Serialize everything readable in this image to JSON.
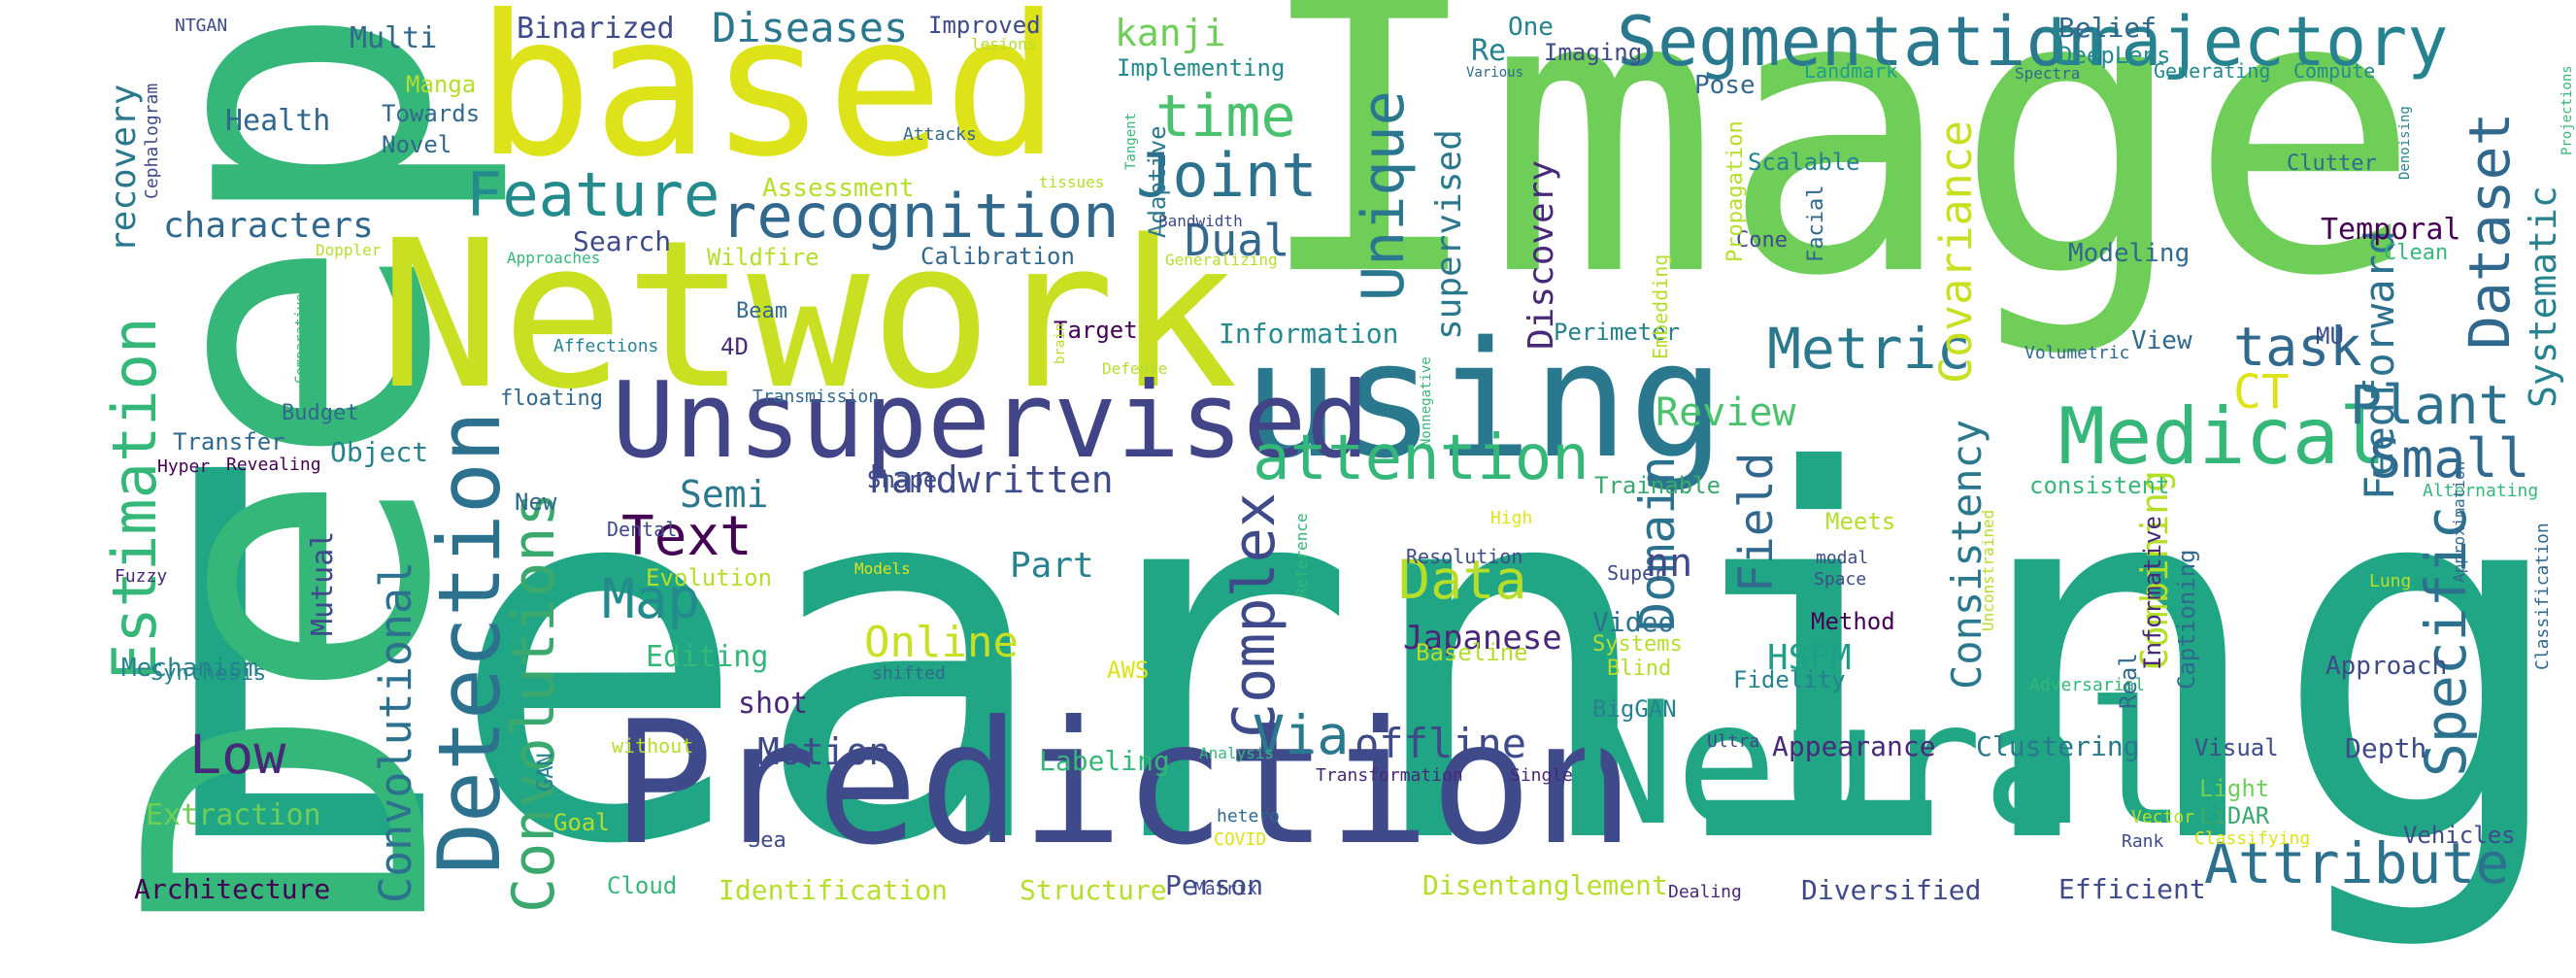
{
  "word_cloud": {
    "background": "#ffffff",
    "palette": [
      "#440154",
      "#482878",
      "#3e4a89",
      "#31688e",
      "#26828e",
      "#1f9e89",
      "#35b779",
      "#6ece58",
      "#b5de2b",
      "#dde318"
    ],
    "words": [
      {
        "text": "Learning",
        "color": "#21a685",
        "vertical": false
      },
      {
        "text": "Image",
        "color": "#6ece58",
        "vertical": false
      },
      {
        "text": "Deep",
        "color": "#35b779",
        "vertical": true
      },
      {
        "text": "Network",
        "color": "#c8df22",
        "vertical": false
      },
      {
        "text": "based",
        "color": "#dde318",
        "vertical": false
      },
      {
        "text": "Prediction",
        "color": "#3e4a89",
        "vertical": false
      },
      {
        "text": "Neural",
        "color": "#21a685",
        "vertical": false
      },
      {
        "text": "using",
        "color": "#2a788e",
        "vertical": false
      },
      {
        "text": "Unsupervised",
        "color": "#414487",
        "vertical": false
      },
      {
        "text": "Detection",
        "color": "#2c728e",
        "vertical": true
      },
      {
        "text": "Medical",
        "color": "#35b779",
        "vertical": false
      },
      {
        "text": "Segmentation",
        "color": "#2a788e",
        "vertical": false
      },
      {
        "text": "trajectory",
        "color": "#26828e",
        "vertical": false
      },
      {
        "text": "Estimation",
        "color": "#35b779",
        "vertical": true
      },
      {
        "text": "Convolutions",
        "color": "#3ba96e",
        "vertical": true
      },
      {
        "text": "Convolutional",
        "color": "#2c728e",
        "vertical": true
      },
      {
        "text": "attention",
        "color": "#35b779",
        "vertical": false
      },
      {
        "text": "recognition",
        "color": "#31688e",
        "vertical": false
      },
      {
        "text": "Feature",
        "color": "#238a8d",
        "vertical": false
      },
      {
        "text": "Joint",
        "color": "#2c728e",
        "vertical": false
      },
      {
        "text": "time",
        "color": "#4ac16d",
        "vertical": false
      },
      {
        "text": "Unique",
        "color": "#2a788e",
        "vertical": true
      },
      {
        "text": "Complex",
        "color": "#3e4a89",
        "vertical": true
      },
      {
        "text": "Metric",
        "color": "#2a788e",
        "vertical": false
      },
      {
        "text": "Plant",
        "color": "#2c728e",
        "vertical": false
      },
      {
        "text": "task",
        "color": "#31688e",
        "vertical": false
      },
      {
        "text": "Small",
        "color": "#31688e",
        "vertical": false
      },
      {
        "text": "Dataset",
        "color": "#31688e",
        "vertical": true
      },
      {
        "text": "Specific",
        "color": "#2c728e",
        "vertical": true
      },
      {
        "text": "Attribute",
        "color": "#2c728e",
        "vertical": false
      },
      {
        "text": "Text",
        "color": "#440154",
        "vertical": false
      },
      {
        "text": "Map",
        "color": "#238a8d",
        "vertical": false
      },
      {
        "text": "Low",
        "color": "#482878",
        "vertical": false
      },
      {
        "text": "Data",
        "color": "#b5de2b",
        "vertical": false
      },
      {
        "text": "Via",
        "color": "#2a788e",
        "vertical": false
      },
      {
        "text": "Domain",
        "color": "#2c728e",
        "vertical": true
      },
      {
        "text": "Field",
        "color": "#31688e",
        "vertical": true
      },
      {
        "text": "Consistency",
        "color": "#2a788e",
        "vertical": true
      },
      {
        "text": "Covariance",
        "color": "#c8df22",
        "vertical": true
      },
      {
        "text": "Feedforward",
        "color": "#2c728e",
        "vertical": true
      },
      {
        "text": "CT",
        "color": "#dde318",
        "vertical": false
      },
      {
        "text": "Online",
        "color": "#c8df22",
        "vertical": false
      },
      {
        "text": "Dual",
        "color": "#31688e",
        "vertical": false
      },
      {
        "text": "handwritten",
        "color": "#3e4a89",
        "vertical": false
      },
      {
        "text": "Motion",
        "color": "#3e4a89",
        "vertical": false
      },
      {
        "text": "offline",
        "color": "#3e4a89",
        "vertical": false
      },
      {
        "text": "Japanese",
        "color": "#482878",
        "vertical": false
      },
      {
        "text": "Review",
        "color": "#4ac16d",
        "vertical": false
      },
      {
        "text": "Semi",
        "color": "#2a788e",
        "vertical": false
      },
      {
        "text": "Part",
        "color": "#26828e",
        "vertical": false
      },
      {
        "text": "HSFM",
        "color": "#1f9e89",
        "vertical": false
      },
      {
        "text": "nn",
        "color": "#3e4a89",
        "vertical": false
      },
      {
        "text": "Systematic",
        "color": "#26828e",
        "vertical": true
      },
      {
        "text": "supervised",
        "color": "#2a788e",
        "vertical": true
      },
      {
        "text": "Discovery",
        "color": "#482878",
        "vertical": true
      },
      {
        "text": "Combining",
        "color": "#b5de2b",
        "vertical": true
      },
      {
        "text": "Diseases",
        "color": "#2a788e",
        "vertical": false
      },
      {
        "text": "kanji",
        "color": "#6ece58",
        "vertical": false
      },
      {
        "text": "characters",
        "color": "#31688e",
        "vertical": false
      },
      {
        "text": "recovery",
        "color": "#2a788e",
        "vertical": true
      },
      {
        "text": "Binarized",
        "color": "#3e4a89",
        "vertical": false
      },
      {
        "text": "Multi",
        "color": "#31688e",
        "vertical": false
      },
      {
        "text": "Health",
        "color": "#31688e",
        "vertical": false
      },
      {
        "text": "Towards",
        "color": "#31688e",
        "vertical": false
      },
      {
        "text": "Novel",
        "color": "#31688e",
        "vertical": false
      },
      {
        "text": "Manga",
        "color": "#b5de2b",
        "vertical": false
      },
      {
        "text": "Improved",
        "color": "#3e4a89",
        "vertical": false
      },
      {
        "text": "One",
        "color": "#26828e",
        "vertical": false
      },
      {
        "text": "Imaging",
        "color": "#3e4a89",
        "vertical": false
      },
      {
        "text": "Re",
        "color": "#26828e",
        "vertical": false
      },
      {
        "text": "Belief",
        "color": "#31688e",
        "vertical": false
      },
      {
        "text": "DeepLens",
        "color": "#238a8d",
        "vertical": false
      },
      {
        "text": "Implementing",
        "color": "#238a8d",
        "vertical": false
      },
      {
        "text": "Pose",
        "color": "#31688e",
        "vertical": false
      },
      {
        "text": "Landmark",
        "color": "#1f9e89",
        "vertical": false
      },
      {
        "text": "Generating",
        "color": "#238a8d",
        "vertical": false
      },
      {
        "text": "Compute",
        "color": "#238a8d",
        "vertical": false
      },
      {
        "text": "Scalable",
        "color": "#26828e",
        "vertical": false
      },
      {
        "text": "Clutter",
        "color": "#31688e",
        "vertical": false
      },
      {
        "text": "Temporal",
        "color": "#440154",
        "vertical": false
      },
      {
        "text": "Cone",
        "color": "#3e4a89",
        "vertical": false
      },
      {
        "text": "Modeling",
        "color": "#31688e",
        "vertical": false
      },
      {
        "text": "Clean",
        "color": "#35b779",
        "vertical": false
      },
      {
        "text": "Search",
        "color": "#3e4a89",
        "vertical": false
      },
      {
        "text": "Assessment",
        "color": "#b5de2b",
        "vertical": false
      },
      {
        "text": "Wildfire",
        "color": "#b5de2b",
        "vertical": false
      },
      {
        "text": "Calibration",
        "color": "#31688e",
        "vertical": false
      },
      {
        "text": "Adaptive",
        "color": "#2a788e",
        "vertical": true
      },
      {
        "text": "Information",
        "color": "#238a8d",
        "vertical": false
      },
      {
        "text": "Perimeter",
        "color": "#26828e",
        "vertical": false
      },
      {
        "text": "Target",
        "color": "#440154",
        "vertical": false
      },
      {
        "text": "Beam",
        "color": "#31688e",
        "vertical": false
      },
      {
        "text": "4D",
        "color": "#482878",
        "vertical": false
      },
      {
        "text": "View",
        "color": "#31688e",
        "vertical": false
      },
      {
        "text": "MU",
        "color": "#3e4a89",
        "vertical": false
      },
      {
        "text": "Volumetric",
        "color": "#31688e",
        "vertical": false
      },
      {
        "text": "Embedding",
        "color": "#b5de2b",
        "vertical": true
      },
      {
        "text": "Propagation",
        "color": "#b5de2b",
        "vertical": true
      },
      {
        "text": "Facial",
        "color": "#31688e",
        "vertical": true
      },
      {
        "text": "Transfer",
        "color": "#31688e",
        "vertical": false
      },
      {
        "text": "Object",
        "color": "#26828e",
        "vertical": false
      },
      {
        "text": "New",
        "color": "#31688e",
        "vertical": false
      },
      {
        "text": "Budget",
        "color": "#31688e",
        "vertical": false
      },
      {
        "text": "floating",
        "color": "#31688e",
        "vertical": false
      },
      {
        "text": "Transmission",
        "color": "#31688e",
        "vertical": false
      },
      {
        "text": "Hyper",
        "color": "#440154",
        "vertical": false
      },
      {
        "text": "Revealing",
        "color": "#440154",
        "vertical": false
      },
      {
        "text": "Shape",
        "color": "#3e4a89",
        "vertical": false
      },
      {
        "text": "Dental",
        "color": "#3e4a89",
        "vertical": false
      },
      {
        "text": "Mutual",
        "color": "#3e4a89",
        "vertical": true
      },
      {
        "text": "Trainable",
        "color": "#3ba96e",
        "vertical": false
      },
      {
        "text": "Meets",
        "color": "#b5de2b",
        "vertical": false
      },
      {
        "text": "consistent",
        "color": "#35b779",
        "vertical": false
      },
      {
        "text": "Alternating",
        "color": "#35b779",
        "vertical": false
      },
      {
        "text": "Resolution",
        "color": "#3e4a89",
        "vertical": false
      },
      {
        "text": "Super",
        "color": "#3e4a89",
        "vertical": false
      },
      {
        "text": "modal",
        "color": "#3e4a89",
        "vertical": false
      },
      {
        "text": "Space",
        "color": "#3e4a89",
        "vertical": false
      },
      {
        "text": "Method",
        "color": "#440154",
        "vertical": false
      },
      {
        "text": "Video",
        "color": "#2c728e",
        "vertical": false
      },
      {
        "text": "Systems",
        "color": "#b5de2b",
        "vertical": false
      },
      {
        "text": "Blind",
        "color": "#b5de2b",
        "vertical": false
      },
      {
        "text": "Fidelity",
        "color": "#26828e",
        "vertical": false
      },
      {
        "text": "BigGAN",
        "color": "#26828e",
        "vertical": false
      },
      {
        "text": "Evolution",
        "color": "#b5de2b",
        "vertical": false
      },
      {
        "text": "Editing",
        "color": "#35b779",
        "vertical": false
      },
      {
        "text": "Mechanism",
        "color": "#26828e",
        "vertical": false
      },
      {
        "text": "Synthesis",
        "color": "#26828e",
        "vertical": false
      },
      {
        "text": "shifted",
        "color": "#31688e",
        "vertical": false
      },
      {
        "text": "AWS",
        "color": "#dde318",
        "vertical": false
      },
      {
        "text": "Baseline",
        "color": "#b5de2b",
        "vertical": false
      },
      {
        "text": "Approach",
        "color": "#3e4a89",
        "vertical": false
      },
      {
        "text": "Real",
        "color": "#31688e",
        "vertical": true
      },
      {
        "text": "Informative",
        "color": "#482878",
        "vertical": true
      },
      {
        "text": "Captioning",
        "color": "#31688e",
        "vertical": true
      },
      {
        "text": "Adversarial",
        "color": "#35b779",
        "vertical": false
      },
      {
        "text": "Classification",
        "color": "#31688e",
        "vertical": true
      },
      {
        "text": "shot",
        "color": "#482878",
        "vertical": false
      },
      {
        "text": "Labeling",
        "color": "#35b779",
        "vertical": false
      },
      {
        "text": "Appearance",
        "color": "#482878",
        "vertical": false
      },
      {
        "text": "Clustering",
        "color": "#2a788e",
        "vertical": false
      },
      {
        "text": "Visual",
        "color": "#3e4a89",
        "vertical": false
      },
      {
        "text": "Depth",
        "color": "#3e4a89",
        "vertical": false
      },
      {
        "text": "Light",
        "color": "#6ece58",
        "vertical": false
      },
      {
        "text": "LiDAR",
        "color": "#3ba96e",
        "vertical": false
      },
      {
        "text": "Vehicles",
        "color": "#3e4a89",
        "vertical": false
      },
      {
        "text": "Extraction",
        "color": "#6ece58",
        "vertical": false
      },
      {
        "text": "Goal",
        "color": "#b5de2b",
        "vertical": false
      },
      {
        "text": "Sea",
        "color": "#3e4a89",
        "vertical": false
      },
      {
        "text": "Architecture",
        "color": "#440154",
        "vertical": false
      },
      {
        "text": "Cloud",
        "color": "#35b779",
        "vertical": false
      },
      {
        "text": "Identification",
        "color": "#b5de2b",
        "vertical": false
      },
      {
        "text": "Structure",
        "color": "#b5de2b",
        "vertical": false
      },
      {
        "text": "Person",
        "color": "#3e4a89",
        "vertical": false
      },
      {
        "text": "Disentanglement",
        "color": "#b5de2b",
        "vertical": false
      },
      {
        "text": "Diversified",
        "color": "#3e4a89",
        "vertical": false
      },
      {
        "text": "Efficient",
        "color": "#3e4a89",
        "vertical": false
      },
      {
        "text": "Dealing",
        "color": "#482878",
        "vertical": false
      },
      {
        "text": "Matrix",
        "color": "#3e4a89",
        "vertical": false
      },
      {
        "text": "COVID",
        "color": "#dde318",
        "vertical": false
      },
      {
        "text": "hetero",
        "color": "#31688e",
        "vertical": false
      },
      {
        "text": "Transformation",
        "color": "#482878",
        "vertical": false
      },
      {
        "text": "Single",
        "color": "#482878",
        "vertical": false
      },
      {
        "text": "Analysis",
        "color": "#35b779",
        "vertical": false
      },
      {
        "text": "Ultra",
        "color": "#3e4a89",
        "vertical": false
      },
      {
        "text": "Vector",
        "color": "#b5de2b",
        "vertical": false
      },
      {
        "text": "Rank",
        "color": "#3e4a89",
        "vertical": false
      },
      {
        "text": "Classifying",
        "color": "#dde318",
        "vertical": false
      },
      {
        "text": "without",
        "color": "#b5de2b",
        "vertical": false
      },
      {
        "text": "GAN",
        "color": "#26828e",
        "vertical": true
      },
      {
        "text": "Fuzzy",
        "color": "#482878",
        "vertical": false
      },
      {
        "text": "NTGAN",
        "color": "#3e4a89",
        "vertical": false
      },
      {
        "text": "Cephalogram",
        "color": "#3e4a89",
        "vertical": true
      },
      {
        "text": "lesions",
        "color": "#b5de2b",
        "vertical": false
      },
      {
        "text": "Attacks",
        "color": "#31688e",
        "vertical": false
      },
      {
        "text": "Tangent",
        "color": "#35b779",
        "vertical": true
      },
      {
        "text": "tissues",
        "color": "#b5de2b",
        "vertical": false
      },
      {
        "text": "Bandwidth",
        "color": "#3e4a89",
        "vertical": false
      },
      {
        "text": "Generalizing",
        "color": "#b5de2b",
        "vertical": false
      },
      {
        "text": "Doppler",
        "color": "#b5de2b",
        "vertical": false
      },
      {
        "text": "Approaches",
        "color": "#35b779",
        "vertical": false
      },
      {
        "text": "Comparative",
        "color": "#35b779",
        "vertical": true
      },
      {
        "text": "Affections",
        "color": "#26828e",
        "vertical": false
      },
      {
        "text": "brain",
        "color": "#b5de2b",
        "vertical": true
      },
      {
        "text": "Defense",
        "color": "#b5de2b",
        "vertical": false
      },
      {
        "text": "Nonnegative",
        "color": "#35b779",
        "vertical": true
      },
      {
        "text": "High",
        "color": "#dde318",
        "vertical": false
      },
      {
        "text": "Reference",
        "color": "#35b779",
        "vertical": true
      },
      {
        "text": "Models",
        "color": "#dde318",
        "vertical": false
      },
      {
        "text": "Unconstrained",
        "color": "#b5de2b",
        "vertical": true
      },
      {
        "text": "Various",
        "color": "#31688e",
        "vertical": false
      },
      {
        "text": "Spectra",
        "color": "#31688e",
        "vertical": false
      },
      {
        "text": "Denoising",
        "color": "#26828e",
        "vertical": true
      },
      {
        "text": "Projections",
        "color": "#35b779",
        "vertical": true
      },
      {
        "text": "Approximation",
        "color": "#31688e",
        "vertical": true
      },
      {
        "text": "Lung",
        "color": "#b5de2b",
        "vertical": false
      }
    ]
  }
}
